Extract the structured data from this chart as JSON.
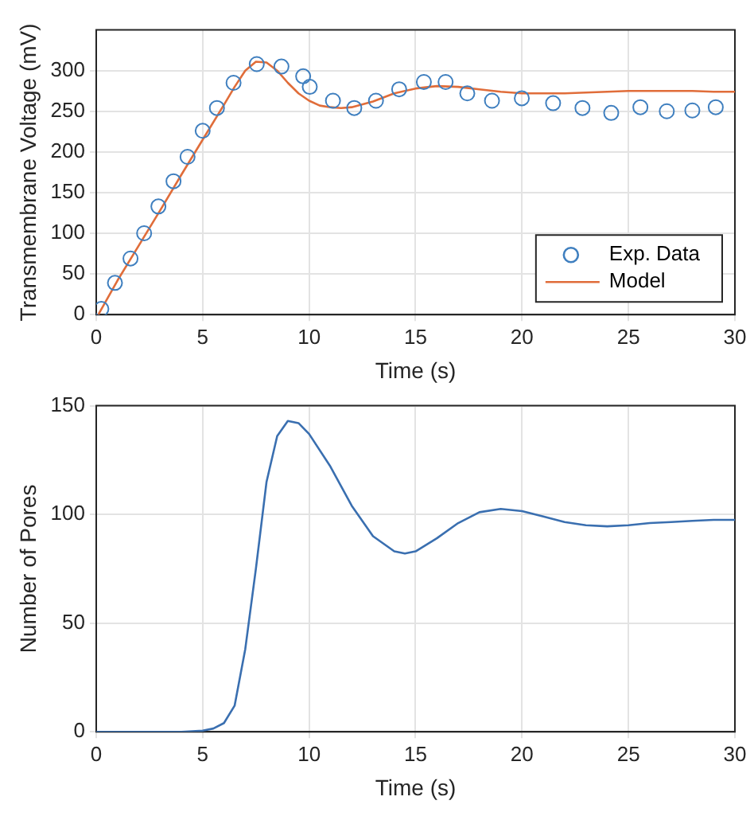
{
  "chart_data": [
    {
      "type": "scatter",
      "xlabel": "Time (s)",
      "ylabel": "Transmembrane Voltage (mV)",
      "xlim": [
        0,
        30
      ],
      "xticks": [
        0,
        5,
        10,
        15,
        20,
        25,
        30
      ],
      "ylim": [
        0,
        350
      ],
      "yticks": [
        0,
        50,
        100,
        150,
        200,
        250,
        300
      ],
      "grid": true,
      "legend": "bottom right",
      "series": [
        {
          "name": "Exp. Data",
          "type": "scatter",
          "marker": "circle",
          "color": "#3f7fbf",
          "x": [
            0.24,
            0.88,
            1.61,
            2.25,
            2.92,
            3.63,
            4.29,
            5.0,
            5.67,
            6.45,
            7.54,
            8.7,
            9.72,
            10.03,
            11.12,
            12.12,
            13.14,
            14.23,
            15.39,
            16.41,
            17.43,
            18.59,
            19.99,
            21.46,
            22.84,
            24.19,
            25.56,
            26.8,
            28.0,
            29.1
          ],
          "values": [
            7,
            39,
            69,
            100,
            133,
            164,
            194,
            226,
            254,
            285,
            308,
            305,
            293,
            280,
            263,
            254,
            263,
            277,
            286,
            286,
            272,
            263,
            266,
            260,
            254,
            248,
            255,
            250,
            251,
            255
          ]
        },
        {
          "name": "Model",
          "type": "line",
          "marker": "none",
          "color": "#e06d3a",
          "x": [
            0.1,
            1,
            2,
            3,
            4,
            5,
            6,
            6.5,
            7,
            7.5,
            8,
            8.5,
            9,
            9.5,
            10,
            10.5,
            11,
            11.5,
            12,
            13,
            14,
            15,
            16,
            17,
            18,
            19,
            20,
            21,
            22,
            23,
            24,
            25,
            26,
            27,
            28,
            29,
            30
          ],
          "values": [
            0,
            42,
            85,
            128,
            172,
            215,
            258,
            280,
            300,
            311,
            310,
            300,
            285,
            272,
            263,
            257,
            255,
            254,
            255,
            262,
            272,
            278,
            281,
            280,
            277,
            274,
            272,
            272,
            272,
            273,
            274,
            275,
            275,
            275,
            275,
            274,
            274
          ]
        }
      ]
    },
    {
      "type": "line",
      "xlabel": "Time (s)",
      "ylabel": "Number of Pores",
      "xlim": [
        0,
        30
      ],
      "xticks": [
        0,
        5,
        10,
        15,
        20,
        25,
        30
      ],
      "ylim": [
        0,
        150
      ],
      "yticks": [
        0,
        50,
        100,
        150
      ],
      "grid": true,
      "marker": "none",
      "series": [
        {
          "color": "#3a6fb0",
          "x": [
            0,
            1,
            2,
            3,
            4,
            5,
            5.5,
            6,
            6.5,
            7,
            7.5,
            7.8,
            8,
            8.5,
            9,
            9.5,
            10,
            11,
            12,
            13,
            14,
            14.5,
            15,
            16,
            17,
            18,
            19,
            20,
            21,
            22,
            23,
            24,
            25,
            26,
            27,
            28,
            29,
            30
          ],
          "values": [
            0,
            0,
            0,
            0,
            0,
            0.5,
            1.5,
            4,
            12,
            38,
            75,
            99,
            115,
            136,
            143,
            142,
            137,
            122,
            104,
            90,
            83,
            82,
            83,
            89,
            96,
            101,
            102.5,
            101.5,
            99,
            96.5,
            95,
            94.5,
            95,
            96,
            96.5,
            97,
            97.5,
            97.5
          ]
        }
      ]
    }
  ]
}
